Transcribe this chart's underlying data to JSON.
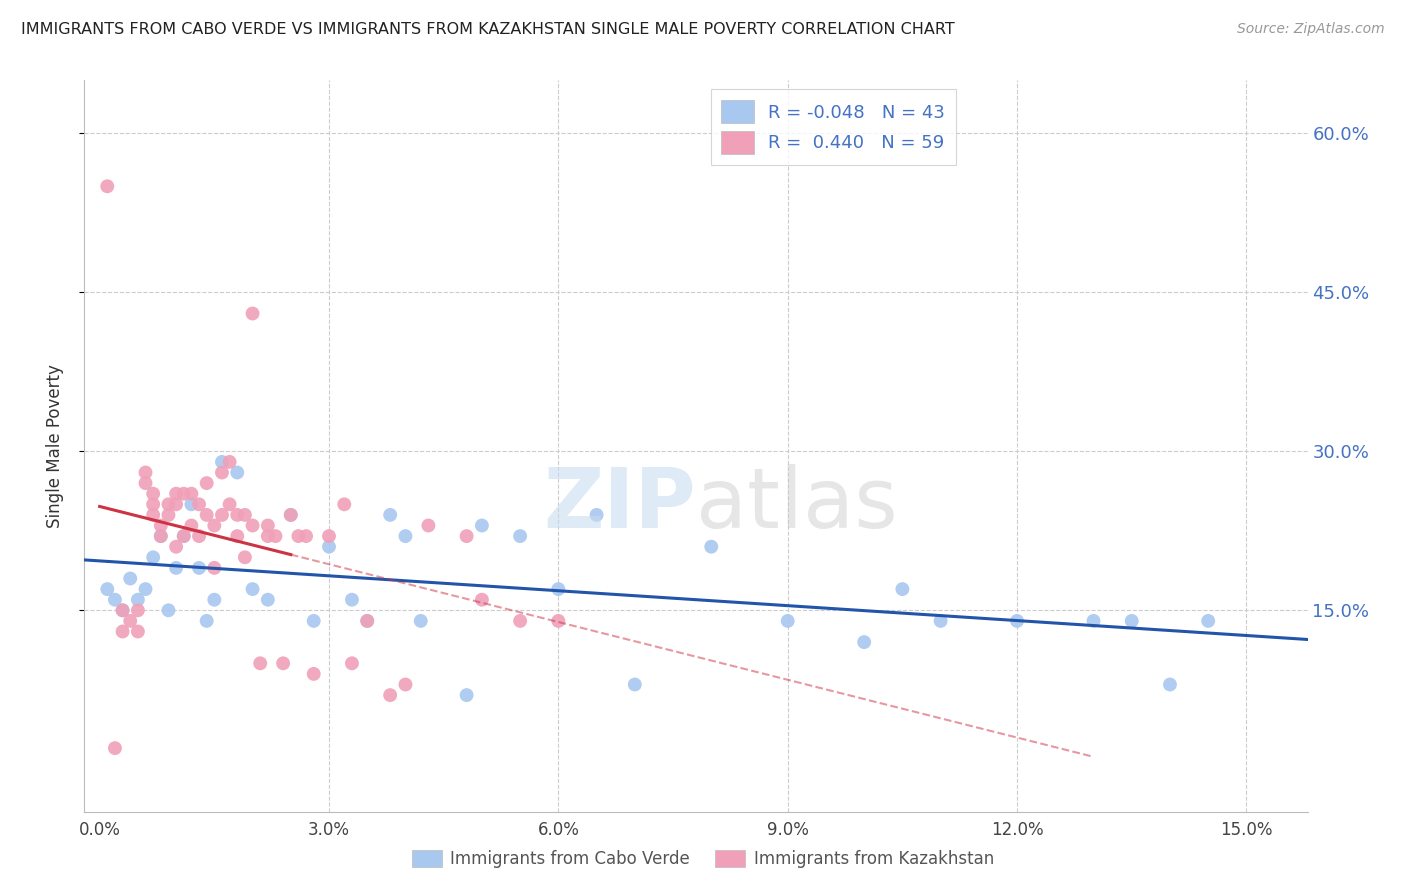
{
  "title": "IMMIGRANTS FROM CABO VERDE VS IMMIGRANTS FROM KAZAKHSTAN SINGLE MALE POVERTY CORRELATION CHART",
  "source": "Source: ZipAtlas.com",
  "ylabel": "Single Male Poverty",
  "y_tick_values": [
    0.15,
    0.3,
    0.45,
    0.6
  ],
  "y_tick_labels": [
    "15.0%",
    "30.0%",
    "45.0%",
    "60.0%"
  ],
  "x_tick_values": [
    0.0,
    0.03,
    0.06,
    0.09,
    0.12,
    0.15
  ],
  "x_tick_labels": [
    "0.0%",
    "3.0%",
    "6.0%",
    "9.0%",
    "12.0%",
    "15.0%"
  ],
  "xlim": [
    -0.002,
    0.158
  ],
  "ylim": [
    -0.04,
    0.65
  ],
  "legend_cabo_verde": "Immigrants from Cabo Verde",
  "legend_kazakhstan": "Immigrants from Kazakhstan",
  "R_cabo_verde": -0.048,
  "N_cabo_verde": 43,
  "R_kazakhstan": 0.44,
  "N_kazakhstan": 59,
  "color_cabo_verde": "#A8C8F0",
  "color_kazakhstan": "#F0A0B8",
  "color_cabo_verde_line": "#2255AA",
  "color_kazakhstan_line": "#CC3344",
  "cabo_verde_x": [
    0.001,
    0.002,
    0.003,
    0.004,
    0.005,
    0.006,
    0.007,
    0.008,
    0.009,
    0.01,
    0.011,
    0.012,
    0.013,
    0.014,
    0.015,
    0.016,
    0.018,
    0.02,
    0.022,
    0.025,
    0.028,
    0.03,
    0.033,
    0.035,
    0.038,
    0.04,
    0.042,
    0.048,
    0.05,
    0.055,
    0.06,
    0.065,
    0.07,
    0.08,
    0.09,
    0.1,
    0.105,
    0.11,
    0.12,
    0.13,
    0.135,
    0.14,
    0.145
  ],
  "cabo_verde_y": [
    0.17,
    0.16,
    0.15,
    0.18,
    0.16,
    0.17,
    0.2,
    0.22,
    0.15,
    0.19,
    0.22,
    0.25,
    0.19,
    0.14,
    0.16,
    0.29,
    0.28,
    0.17,
    0.16,
    0.24,
    0.14,
    0.21,
    0.16,
    0.14,
    0.24,
    0.22,
    0.14,
    0.07,
    0.23,
    0.22,
    0.17,
    0.24,
    0.08,
    0.21,
    0.14,
    0.12,
    0.17,
    0.14,
    0.14,
    0.14,
    0.14,
    0.08,
    0.14
  ],
  "kazakhstan_x": [
    0.001,
    0.002,
    0.003,
    0.003,
    0.004,
    0.005,
    0.005,
    0.006,
    0.006,
    0.007,
    0.007,
    0.007,
    0.008,
    0.008,
    0.009,
    0.009,
    0.01,
    0.01,
    0.01,
    0.011,
    0.011,
    0.012,
    0.012,
    0.013,
    0.013,
    0.014,
    0.014,
    0.015,
    0.015,
    0.016,
    0.016,
    0.017,
    0.017,
    0.018,
    0.018,
    0.019,
    0.019,
    0.02,
    0.02,
    0.021,
    0.022,
    0.022,
    0.023,
    0.024,
    0.025,
    0.026,
    0.027,
    0.028,
    0.03,
    0.032,
    0.033,
    0.035,
    0.038,
    0.04,
    0.043,
    0.048,
    0.05,
    0.055,
    0.06
  ],
  "kazakhstan_y": [
    0.55,
    0.02,
    0.13,
    0.15,
    0.14,
    0.15,
    0.13,
    0.27,
    0.28,
    0.25,
    0.26,
    0.24,
    0.23,
    0.22,
    0.25,
    0.24,
    0.21,
    0.26,
    0.25,
    0.22,
    0.26,
    0.23,
    0.26,
    0.25,
    0.22,
    0.24,
    0.27,
    0.19,
    0.23,
    0.24,
    0.28,
    0.29,
    0.25,
    0.24,
    0.22,
    0.2,
    0.24,
    0.23,
    0.43,
    0.1,
    0.22,
    0.23,
    0.22,
    0.1,
    0.24,
    0.22,
    0.22,
    0.09,
    0.22,
    0.25,
    0.1,
    0.14,
    0.07,
    0.08,
    0.23,
    0.22,
    0.16,
    0.14,
    0.14
  ]
}
